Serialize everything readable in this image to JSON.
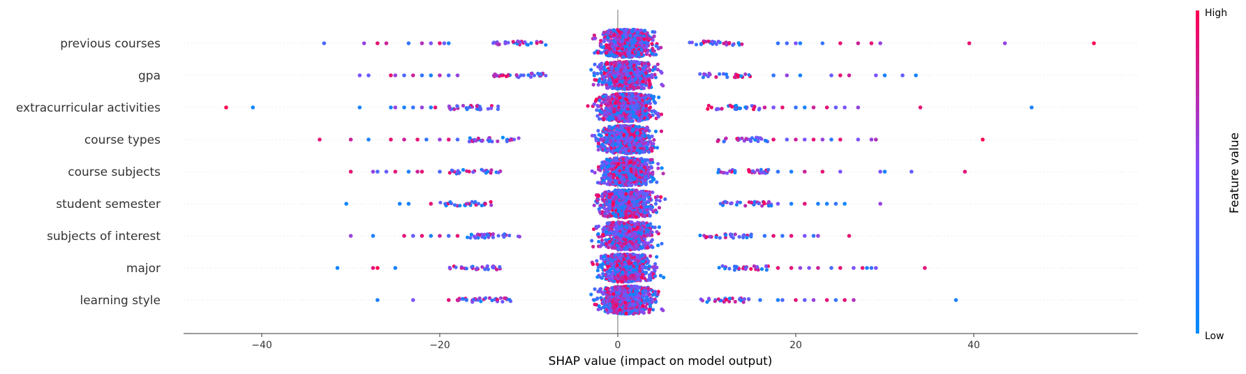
{
  "chart_data": {
    "type": "scatter",
    "subtype": "shap-beeswarm",
    "title": "",
    "xlabel": "SHAP value (impact on model output)",
    "ylabel": "",
    "xlim": [
      -49,
      58
    ],
    "xticks": [
      -40,
      -20,
      0,
      20,
      40
    ],
    "xtick_labels": [
      "−40",
      "−20",
      "0",
      "20",
      "40"
    ],
    "grid": false,
    "zero_line": true,
    "features": [
      {
        "name": "previous courses",
        "spread": [
          -14,
          14
        ],
        "outliers": [
          [
            -33,
            0.3
          ],
          [
            -28.5,
            0.6
          ],
          [
            -27,
            0.9
          ],
          [
            -26,
            0.8
          ],
          [
            -23.5,
            0.2
          ],
          [
            -22,
            0.7
          ],
          [
            -21,
            0.5
          ],
          [
            -20,
            0.9
          ],
          [
            -19.5,
            0.4
          ],
          [
            -19,
            0.1
          ],
          [
            18,
            0.2
          ],
          [
            19,
            0.3
          ],
          [
            20,
            0.5
          ],
          [
            20.5,
            0.1
          ],
          [
            23,
            0.2
          ],
          [
            25,
            0.9
          ],
          [
            27,
            0.8
          ],
          [
            28.5,
            0.9
          ],
          [
            29.5,
            0.6
          ],
          [
            39.5,
            0.9
          ],
          [
            43.5,
            0.6
          ],
          [
            53.5,
            1.0
          ]
        ]
      },
      {
        "name": "gpa",
        "spread": [
          -14,
          15
        ],
        "outliers": [
          [
            -29,
            0.5
          ],
          [
            -28,
            0.4
          ],
          [
            -25.5,
            0.9
          ],
          [
            -25,
            0.6
          ],
          [
            -24,
            0.3
          ],
          [
            -23,
            0.8
          ],
          [
            -22,
            0.2
          ],
          [
            -21,
            0.1
          ],
          [
            -20,
            0.7
          ],
          [
            -19,
            0.3
          ],
          [
            -18,
            0.6
          ],
          [
            17.5,
            0.2
          ],
          [
            19,
            0.6
          ],
          [
            20.5,
            0.1
          ],
          [
            24,
            0.4
          ],
          [
            25,
            0.9
          ],
          [
            26,
            0.8
          ],
          [
            29,
            0.5
          ],
          [
            30,
            0.1
          ],
          [
            32,
            0.4
          ],
          [
            33.5,
            0.1
          ]
        ]
      },
      {
        "name": "extracurricular activities",
        "spread": [
          -19,
          16
        ],
        "outliers": [
          [
            -44,
            1.0
          ],
          [
            -41,
            0.05
          ],
          [
            -29,
            0.1
          ],
          [
            -25.5,
            0.1
          ],
          [
            -25,
            0.6
          ],
          [
            -24,
            0.1
          ],
          [
            -23,
            0.2
          ],
          [
            -22,
            0.6
          ],
          [
            -21,
            0.1
          ],
          [
            -20.5,
            0.9
          ],
          [
            16.5,
            0.8
          ],
          [
            17.5,
            0.5
          ],
          [
            18.5,
            0.9
          ],
          [
            20,
            0.2
          ],
          [
            21,
            0.1
          ],
          [
            22,
            0.8
          ],
          [
            23.5,
            0.9
          ],
          [
            24.5,
            0.4
          ],
          [
            25.5,
            0.5
          ],
          [
            27,
            0.6
          ],
          [
            34,
            0.9
          ],
          [
            46.5,
            0.1
          ]
        ]
      },
      {
        "name": "course types",
        "spread": [
          -17,
          17
        ],
        "outliers": [
          [
            -33.5,
            0.9
          ],
          [
            -30,
            0.8
          ],
          [
            -28,
            0.1
          ],
          [
            -25.5,
            0.9
          ],
          [
            -24,
            0.8
          ],
          [
            -22.5,
            0.9
          ],
          [
            -21.5,
            0.2
          ],
          [
            -20,
            0.6
          ],
          [
            -19,
            0.9
          ],
          [
            -18,
            0.3
          ],
          [
            17.5,
            0.9
          ],
          [
            19,
            0.4
          ],
          [
            20,
            0.8
          ],
          [
            21,
            0.5
          ],
          [
            22,
            0.9
          ],
          [
            23,
            0.6
          ],
          [
            24,
            0.2
          ],
          [
            25,
            0.9
          ],
          [
            27,
            0.5
          ],
          [
            28.5,
            0.6
          ],
          [
            29,
            0.7
          ],
          [
            41,
            1.0
          ]
        ]
      },
      {
        "name": "course subjects",
        "spread": [
          -19,
          17
        ],
        "outliers": [
          [
            -30,
            0.9
          ],
          [
            -27.5,
            0.6
          ],
          [
            -27,
            0.3
          ],
          [
            -26,
            0.4
          ],
          [
            -25,
            0.9
          ],
          [
            -23.5,
            0.1
          ],
          [
            -22.5,
            0.8
          ],
          [
            -22,
            0.9
          ],
          [
            -20,
            0.3
          ],
          [
            18,
            0.2
          ],
          [
            19.5,
            0.1
          ],
          [
            21,
            0.8
          ],
          [
            23,
            0.9
          ],
          [
            25,
            0.5
          ],
          [
            29.5,
            0.5
          ],
          [
            30,
            0.1
          ],
          [
            33,
            0.4
          ],
          [
            39,
            0.9
          ]
        ]
      },
      {
        "name": "student semester",
        "spread": [
          -20,
          17.5
        ],
        "outliers": [
          [
            -30.5,
            0.05
          ],
          [
            -24.5,
            0.1
          ],
          [
            -23.5,
            0.1
          ],
          [
            -21,
            0.9
          ],
          [
            18,
            0.5
          ],
          [
            19.5,
            0.1
          ],
          [
            21,
            0.9
          ],
          [
            22.5,
            0.1
          ],
          [
            23.5,
            0.1
          ],
          [
            24.5,
            0.2
          ],
          [
            25.5,
            0.05
          ],
          [
            29.5,
            0.6
          ]
        ]
      },
      {
        "name": "subjects of interest",
        "spread": [
          -17,
          15
        ],
        "outliers": [
          [
            -30,
            0.6
          ],
          [
            -27.5,
            0.1
          ],
          [
            -24,
            0.9
          ],
          [
            -23,
            0.4
          ],
          [
            -22,
            0.9
          ],
          [
            -21,
            0.1
          ],
          [
            -20,
            0.8
          ],
          [
            -19,
            0.3
          ],
          [
            -18,
            0.9
          ],
          [
            16.5,
            0.2
          ],
          [
            17.5,
            0.9
          ],
          [
            18.5,
            0.2
          ],
          [
            19.5,
            0.9
          ],
          [
            21,
            0.5
          ],
          [
            22,
            0.2
          ],
          [
            22.5,
            0.6
          ],
          [
            26,
            0.9
          ]
        ]
      },
      {
        "name": "major",
        "spread": [
          -19,
          17
        ],
        "outliers": [
          [
            -31.5,
            0.05
          ],
          [
            -27.5,
            0.9
          ],
          [
            -27,
            1.0
          ],
          [
            -25,
            0.1
          ],
          [
            18,
            0.9
          ],
          [
            19.5,
            0.9
          ],
          [
            20.5,
            0.6
          ],
          [
            21.5,
            0.5
          ],
          [
            22.5,
            0.8
          ],
          [
            24,
            0.3
          ],
          [
            25,
            0.9
          ],
          [
            26.5,
            0.5
          ],
          [
            27.5,
            0.9
          ],
          [
            28,
            0.1
          ],
          [
            28.5,
            0.2
          ],
          [
            29,
            0.5
          ],
          [
            34.5,
            0.9
          ]
        ]
      },
      {
        "name": "learning style",
        "spread": [
          -18,
          15
        ],
        "outliers": [
          [
            -27,
            0.1
          ],
          [
            -23,
            0.5
          ],
          [
            -19,
            0.9
          ],
          [
            -18,
            0.8
          ],
          [
            -17,
            0.2
          ],
          [
            16,
            0.2
          ],
          [
            18,
            0.1
          ],
          [
            18.5,
            0.3
          ],
          [
            20,
            0.9
          ],
          [
            21,
            0.4
          ],
          [
            22,
            0.6
          ],
          [
            23.5,
            0.9
          ],
          [
            24.5,
            0.2
          ],
          [
            25.5,
            0.9
          ],
          [
            26.5,
            0.7
          ],
          [
            38,
            0.1
          ]
        ]
      }
    ],
    "colorbar": {
      "label": "Feature value",
      "high_label": "High",
      "low_label": "Low",
      "low_color": "#008bfb",
      "mid_color": "#7c52ff",
      "high_color": "#ff0051"
    }
  }
}
